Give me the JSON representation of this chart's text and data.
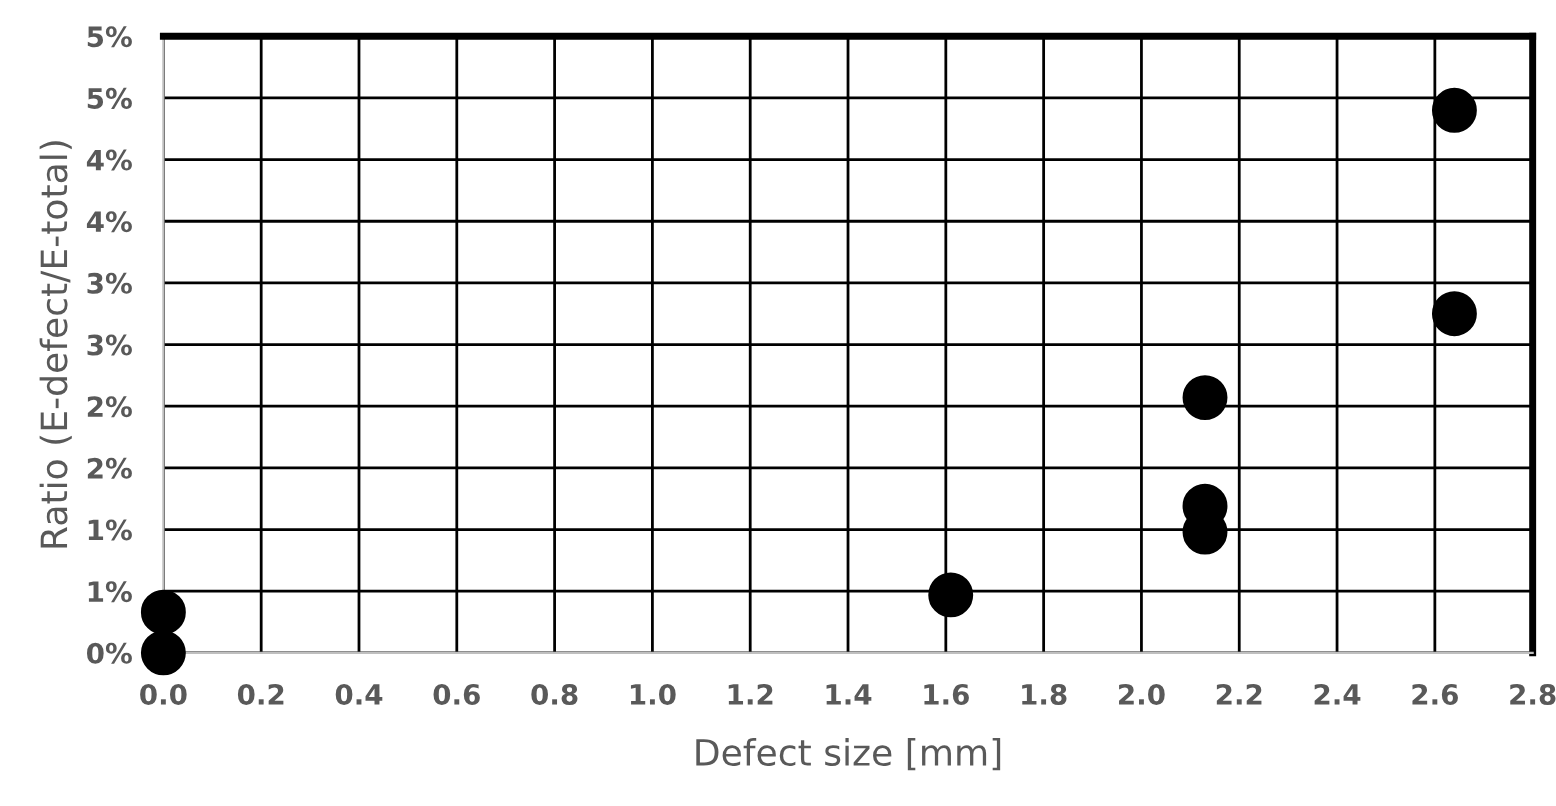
{
  "chart_data": {
    "type": "scatter",
    "xlabel": "Defect size [mm]",
    "ylabel": "Ratio (E-defect/E-total)",
    "x": [
      0.0,
      0.0,
      1.61,
      2.13,
      2.13,
      2.13,
      2.64,
      2.64
    ],
    "series": [
      {
        "color": "#000000",
        "values": [
          0.0,
          0.33,
          0.47,
          0.98,
          1.19,
          2.07,
          2.75,
          4.4
        ]
      }
    ],
    "xlim": [
      0,
      2.8
    ],
    "xticks": [
      {
        "value": 0,
        "label": "0.0"
      },
      {
        "value": 0.2,
        "label": "0.2"
      },
      {
        "value": 0.4,
        "label": "0.4"
      },
      {
        "value": 0.6,
        "label": "0.6"
      },
      {
        "value": 0.8,
        "label": "0.8"
      },
      {
        "value": 1.0,
        "label": "1.0"
      },
      {
        "value": 1.2,
        "label": "1.2"
      },
      {
        "value": 1.4,
        "label": "1.4"
      },
      {
        "value": 1.6,
        "label": "1.6"
      },
      {
        "value": 1.8,
        "label": "1.8"
      },
      {
        "value": 2.0,
        "label": "2.0"
      },
      {
        "value": 2.2,
        "label": "2.2"
      },
      {
        "value": 2.4,
        "label": "2.4"
      },
      {
        "value": 2.6,
        "label": "2.6"
      },
      {
        "value": 2.8,
        "label": "2.8"
      }
    ],
    "ylim": [
      0,
      5
    ],
    "yticks": [
      {
        "value": 0,
        "label": "0%"
      },
      {
        "value": 0.5,
        "label": "1%"
      },
      {
        "value": 1,
        "label": "1%"
      },
      {
        "value": 1.5,
        "label": "2%"
      },
      {
        "value": 2,
        "label": "2%"
      },
      {
        "value": 2.5,
        "label": "3%"
      },
      {
        "value": 3,
        "label": "3%"
      },
      {
        "value": 3.5,
        "label": "4%"
      },
      {
        "value": 4,
        "label": "4%"
      },
      {
        "value": 4.5,
        "label": "5%"
      },
      {
        "value": 5,
        "label": "5%"
      }
    ],
    "grid": true,
    "marker": "circle"
  }
}
